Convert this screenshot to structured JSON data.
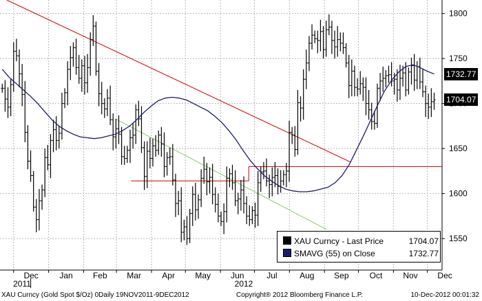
{
  "chart_data": {
    "type": "line",
    "title": "",
    "xlabel": "",
    "ylabel": "",
    "ylim": [
      1515,
      1815
    ],
    "y_ticks": [
      1550,
      1600,
      1650,
      1700,
      1750,
      1800
    ],
    "x_ticks": [
      "Dec",
      "Jan",
      "Feb",
      "Mar",
      "Apr",
      "May",
      "Jun",
      "Jul",
      "Aug",
      "Sep",
      "Oct",
      "Nov",
      "Dec"
    ],
    "year_labels": [
      "2011",
      "2012"
    ],
    "grid": true,
    "price_series": {
      "name": "XAU Curncy - Last Price",
      "style": "daily bars",
      "color": "#000000",
      "closes": [
        1717,
        1705,
        1696,
        1721,
        1758,
        1753,
        1733,
        1710,
        1668,
        1636,
        1620,
        1585,
        1571,
        1592,
        1604,
        1640,
        1632,
        1659,
        1671,
        1659,
        1667,
        1700,
        1712,
        1738,
        1751,
        1762,
        1740,
        1728,
        1742,
        1723,
        1740,
        1771,
        1786,
        1736,
        1711,
        1700,
        1694,
        1706,
        1682,
        1663,
        1672,
        1666,
        1641,
        1639,
        1648,
        1662,
        1665,
        1693,
        1683,
        1651,
        1619,
        1647,
        1639,
        1653,
        1648,
        1665,
        1655,
        1630,
        1640,
        1641,
        1615,
        1589,
        1592,
        1557,
        1563,
        1550,
        1578,
        1599,
        1582,
        1593,
        1617,
        1627,
        1613,
        1618,
        1599,
        1588,
        1575,
        1569,
        1580,
        1617,
        1622,
        1612,
        1592,
        1594,
        1604,
        1589,
        1575,
        1571,
        1581,
        1576,
        1612,
        1624,
        1625,
        1614,
        1610,
        1618,
        1620,
        1608,
        1614,
        1621,
        1625,
        1668,
        1665,
        1649,
        1701,
        1695,
        1727,
        1745,
        1767,
        1776,
        1772,
        1770,
        1780,
        1760,
        1782,
        1785,
        1770,
        1763,
        1771,
        1767,
        1762,
        1745,
        1720,
        1736,
        1718,
        1716,
        1722,
        1718,
        1700,
        1693,
        1680,
        1678,
        1717,
        1725,
        1728,
        1731,
        1732,
        1725,
        1727,
        1715,
        1728,
        1734,
        1715,
        1735,
        1742,
        1726,
        1741,
        1724,
        1713,
        1700,
        1696,
        1702,
        1704.07
      ],
      "last_value": "1704.07"
    },
    "sma_series": {
      "name": "SMAVG (55) on Close",
      "color": "#1a1a6e",
      "values": [
        1738,
        1729,
        1722,
        1715,
        1708,
        1700,
        1691,
        1682,
        1675,
        1670,
        1666,
        1663,
        1662,
        1661,
        1662,
        1664,
        1666,
        1670,
        1675,
        1682,
        1690,
        1697,
        1703,
        1706,
        1707,
        1706,
        1704,
        1700,
        1696,
        1692,
        1686,
        1679,
        1670,
        1660,
        1648,
        1637,
        1628,
        1620,
        1614,
        1609,
        1605,
        1603,
        1602,
        1602,
        1603,
        1605,
        1607,
        1612,
        1620,
        1632,
        1648,
        1664,
        1681,
        1698,
        1714,
        1726,
        1735,
        1741,
        1743,
        1740,
        1736,
        1732.77
      ],
      "last_value": "1732.77"
    },
    "trendlines": [
      {
        "color": "#cc0000",
        "from": [
          "2011-11-25",
          1815
        ],
        "to": [
          "2012-09-24",
          1635
        ]
      },
      {
        "color": "#cc0000",
        "from": [
          "2012-03-14",
          1614
        ],
        "to": [
          "2012-06-26",
          1614
        ]
      },
      {
        "color": "#cc0000",
        "from": [
          "2012-06-26",
          1614
        ],
        "to": [
          "2012-06-26",
          1630
        ]
      },
      {
        "color": "#cc0000",
        "from": [
          "2012-06-26",
          1630
        ],
        "to": [
          "2012-12-14",
          1630
        ]
      },
      {
        "color": "#88cc66",
        "from": [
          "2012-02-29",
          1683
        ],
        "to": [
          "2012-09-03",
          1560
        ]
      }
    ],
    "legend_position": "bottom-right"
  },
  "legend": {
    "price_label": "XAU Curncy  - Last Price",
    "price_value": "1704.07",
    "sma_label": "SMAVG (55) on Close",
    "sma_value": "1732.77"
  },
  "footer": {
    "left": "XAU Curncy (Gold Spot  $/Oz) 0Daily 19NOV2011-9DEC2012",
    "center": "Copyright® 2012 Bloomberg Finance L.P.",
    "right": "10-Dec-2012 00:01:32"
  },
  "colors": {
    "grid": "#b8b8b8",
    "trend_red": "#cc0000",
    "trend_green": "#88cc66",
    "price": "#000000",
    "sma": "#1a1a6e"
  }
}
